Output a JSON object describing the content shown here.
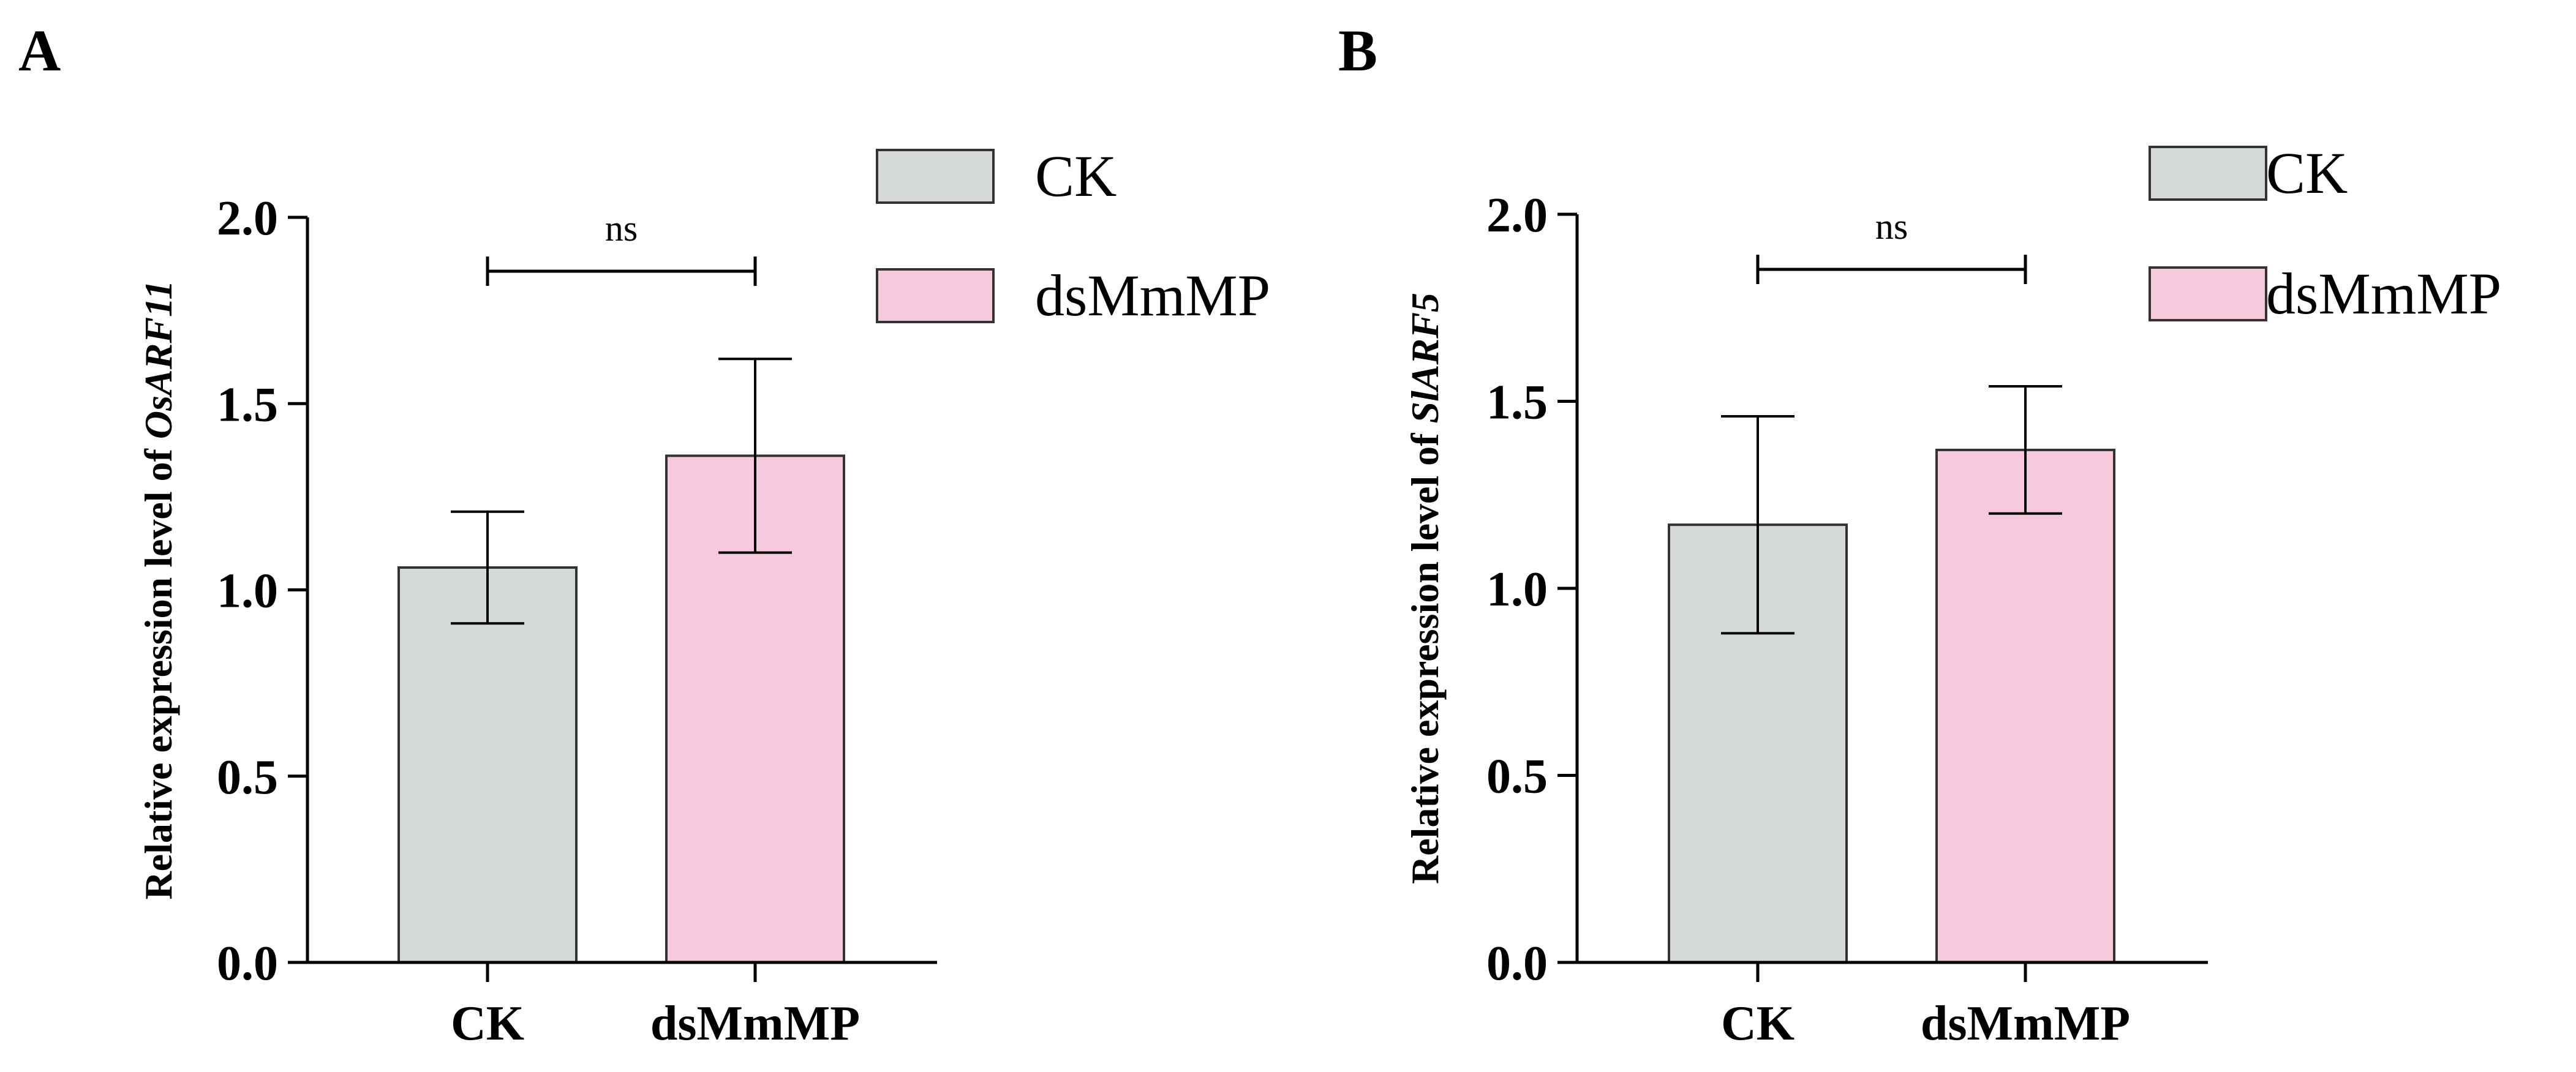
{
  "chart_data": [
    {
      "panel": "A",
      "type": "bar",
      "categories": [
        "CK",
        "dsMmMP"
      ],
      "values": [
        1.06,
        1.36
      ],
      "errors": [
        0.15,
        0.26
      ],
      "ylabel_prefix": "Relative expression level of ",
      "ylabel_gene": "OsARF11",
      "ylim": [
        0,
        2.0
      ],
      "yticks": [
        "0.0",
        "0.5",
        "1.0",
        "1.5",
        "2.0"
      ],
      "significance": "ns",
      "legend": [
        "CK",
        "dsMmMP"
      ],
      "legend_position": "top-right",
      "colors": [
        "#d5d9d8",
        "#f8c8dc"
      ],
      "grid": false
    },
    {
      "panel": "B",
      "type": "bar",
      "categories": [
        "CK",
        "dsMmMP"
      ],
      "values": [
        1.17,
        1.37
      ],
      "errors": [
        0.29,
        0.17
      ],
      "ylabel_prefix": "Relative expression level of ",
      "ylabel_gene": "SlARF5",
      "ylim": [
        0,
        2.0
      ],
      "yticks": [
        "0.0",
        "0.5",
        "1.0",
        "1.5",
        "2.0"
      ],
      "significance": "ns",
      "legend": [
        "CK",
        "dsMmMP"
      ],
      "legend_position": "top-right",
      "colors": [
        "#d5d9d8",
        "#f8c8dc"
      ],
      "grid": false
    }
  ]
}
